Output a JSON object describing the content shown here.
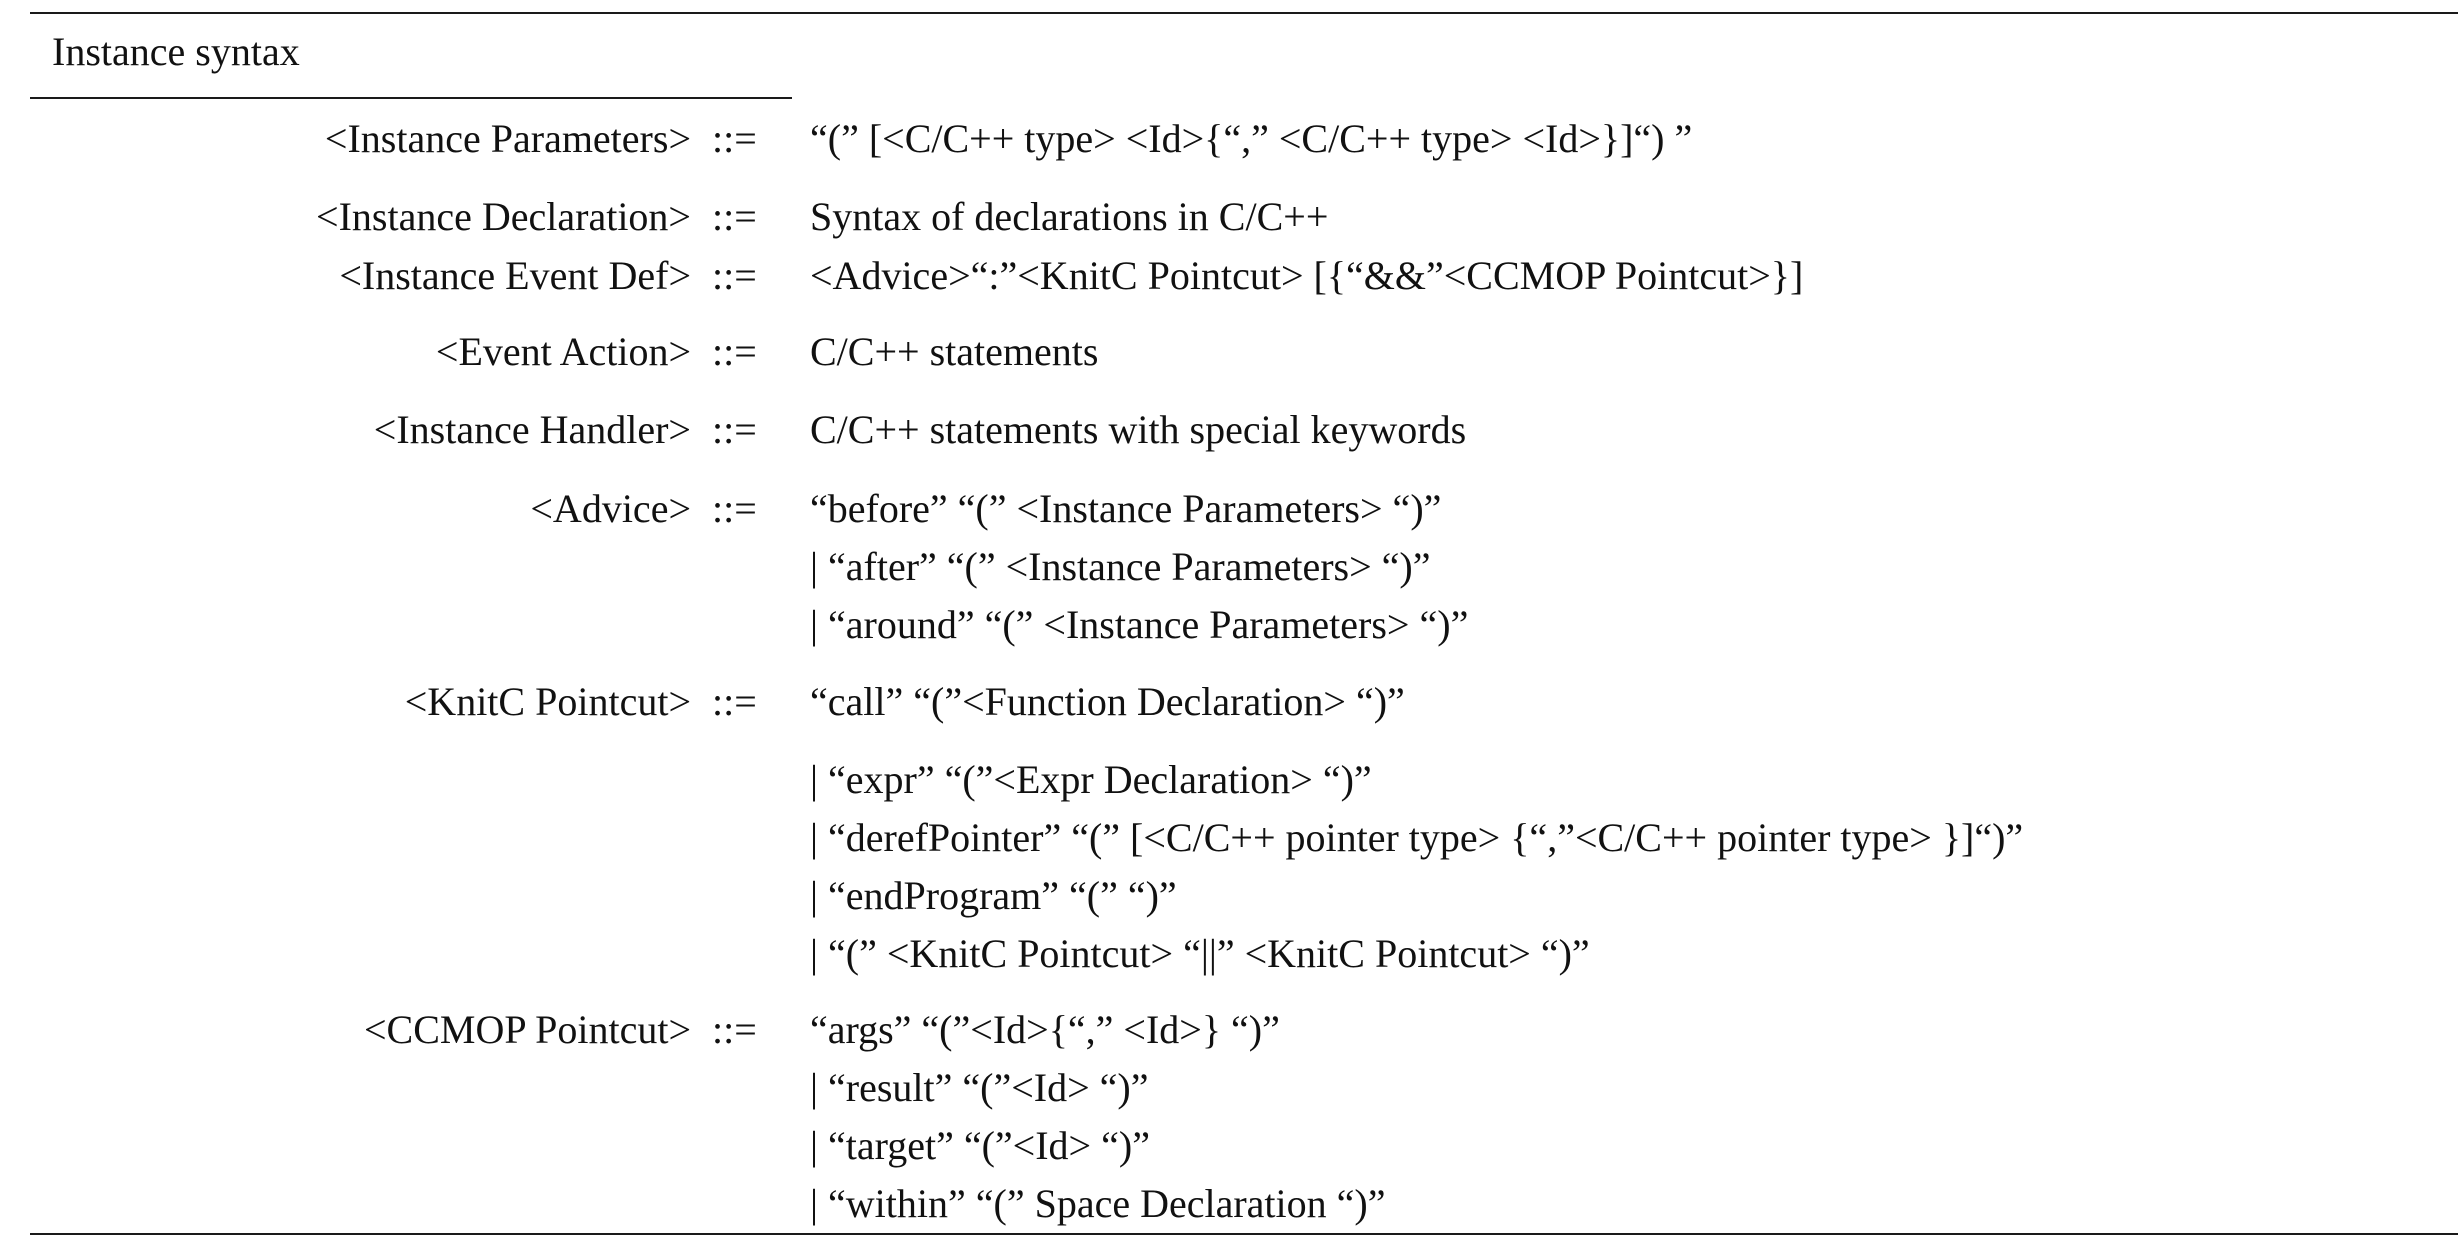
{
  "table": {
    "caption": "Instance syntax",
    "operator": "::=",
    "productions": [
      {
        "name": "<Instance Parameters>",
        "alternatives": [
          "“(” [<C/C++ type> <Id>{“,” <C/C++ type> <Id>}]“) ”"
        ]
      },
      {
        "name": "<Instance Declaration>",
        "alternatives": [
          "Syntax of declarations in C/C++"
        ]
      },
      {
        "name": "<Instance Event Def>",
        "alternatives": [
          "<Advice>“:”<KnitC Pointcut> [{“&&”<CCMOP Pointcut>}]"
        ]
      },
      {
        "name": "<Event Action>",
        "alternatives": [
          "C/C++ statements"
        ]
      },
      {
        "name": "<Instance Handler>",
        "alternatives": [
          "C/C++ statements with special keywords"
        ]
      },
      {
        "name": "<Advice>",
        "alternatives": [
          "“before” “(” <Instance Parameters>  “)”",
          "| “after” “(” <Instance Parameters>  “)”",
          "| “around” “(” <Instance Parameters>  “)”"
        ]
      },
      {
        "name": "<KnitC Pointcut>",
        "alternatives": [
          "“call” “(”<Function Declaration> “)”",
          "| “expr” “(”<Expr Declaration> “)”",
          "| “derefPointer” “(” [<C/C++ pointer type> {“,”<C/C++ pointer type> }]“)”",
          "| “endProgram”  “(” “)”",
          "| “(” <KnitC Pointcut>  “||”  <KnitC Pointcut> “)”"
        ]
      },
      {
        "name": "<CCMOP Pointcut>",
        "alternatives": [
          "“args” “(”<Id>{“,” <Id>} “)”",
          "| “result” “(”<Id> “)”",
          "| “target” “(”<Id> “)”",
          "| “within” “(” Space Declaration “)”"
        ]
      }
    ]
  }
}
